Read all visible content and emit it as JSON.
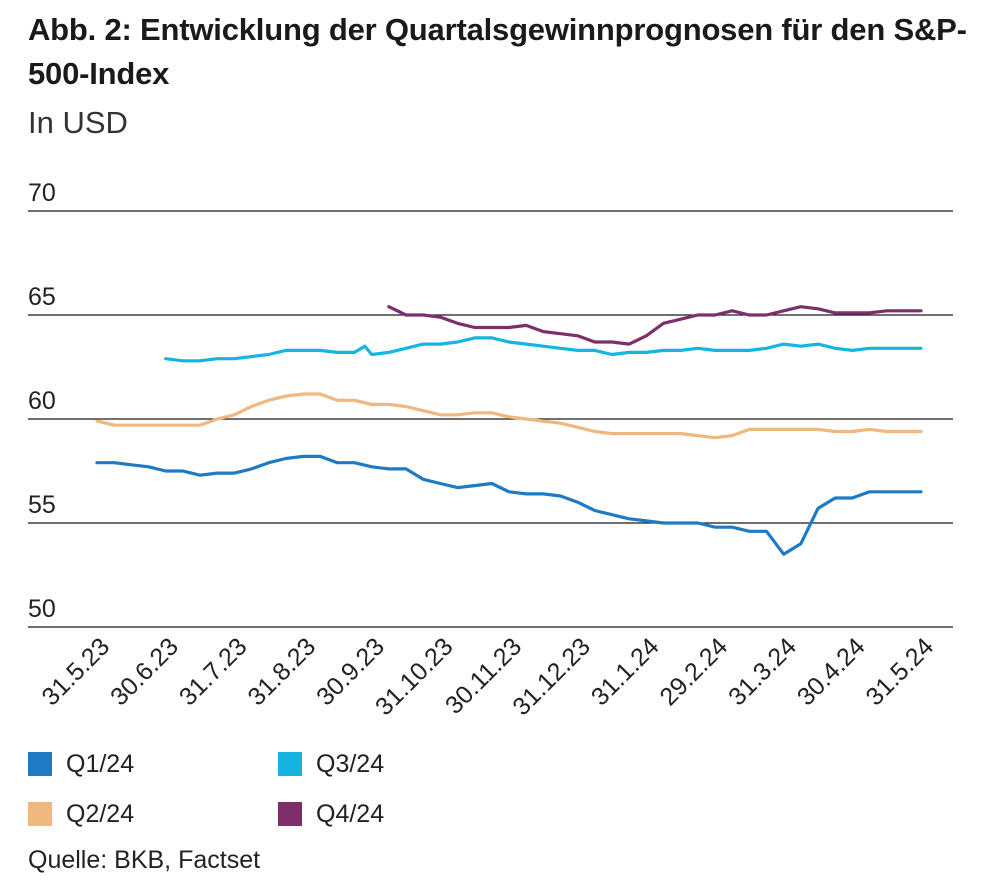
{
  "title": "Abb. 2: Entwicklung der Quartalsgewinnprognosen für den S&P-500-Index",
  "subtitle": "In USD",
  "source": "Quelle: BKB, Factset",
  "chart_data": {
    "type": "line",
    "title": "Abb. 2: Entwicklung der Quartalsgewinnprognosen für den S&P-500-Index",
    "ylabel": "In USD",
    "ylim": [
      50,
      70
    ],
    "yticks": [
      "50",
      "55",
      "60",
      "65",
      "70"
    ],
    "grid": true,
    "legend_position": "bottom",
    "xticks": [
      "31.5.23",
      "30.6.23",
      "31.7.23",
      "31.8.23",
      "30.9.23",
      "31.10.23",
      "30.11.23",
      "31.12.23",
      "31.1.24",
      "29.2.24",
      "31.3.24",
      "30.4.24",
      "31.5.24"
    ],
    "series": [
      {
        "name": "Q1/24",
        "color": "#1f7ac4",
        "x": [
          0,
          0.25,
          0.5,
          0.75,
          1,
          1.25,
          1.5,
          1.75,
          2,
          2.25,
          2.5,
          2.75,
          3,
          3.25,
          3.5,
          3.75,
          4,
          4.25,
          4.5,
          4.75,
          5,
          5.25,
          5.5,
          5.75,
          6,
          6.25,
          6.5,
          6.75,
          7,
          7.25,
          7.5,
          7.75,
          8,
          8.25,
          8.5,
          8.75,
          9,
          9.25,
          9.5,
          9.75,
          10,
          10.25,
          10.5,
          10.75,
          10.9,
          11,
          11.25,
          11.5,
          11.75,
          12
        ],
        "values": [
          57.9,
          57.9,
          57.8,
          57.7,
          57.5,
          57.5,
          57.3,
          57.4,
          57.4,
          57.6,
          57.9,
          58.1,
          58.2,
          58.2,
          57.9,
          57.9,
          57.7,
          57.6,
          57.6,
          57.1,
          56.9,
          56.7,
          56.8,
          56.9,
          56.5,
          56.4,
          56.4,
          56.3,
          56.0,
          55.6,
          55.4,
          55.2,
          55.1,
          55.0,
          55.0,
          55.0,
          54.8,
          54.8,
          54.6,
          54.6,
          53.5,
          54.0,
          55.7,
          56.2,
          56.2,
          56.2,
          56.5,
          56.5,
          56.5,
          56.5
        ]
      },
      {
        "name": "Q2/24",
        "color": "#f0b77e",
        "x": [
          0,
          0.25,
          0.5,
          0.75,
          1,
          1.25,
          1.5,
          1.75,
          2,
          2.25,
          2.5,
          2.75,
          3,
          3.25,
          3.5,
          3.75,
          4,
          4.25,
          4.5,
          4.75,
          5,
          5.25,
          5.5,
          5.75,
          6,
          6.25,
          6.5,
          6.75,
          7,
          7.25,
          7.5,
          7.75,
          8,
          8.25,
          8.5,
          8.75,
          9,
          9.25,
          9.5,
          9.75,
          10,
          10.25,
          10.5,
          10.75,
          11,
          11.25,
          11.5,
          11.75,
          12
        ],
        "values": [
          59.9,
          59.7,
          59.7,
          59.7,
          59.7,
          59.7,
          59.7,
          60.0,
          60.2,
          60.6,
          60.9,
          61.1,
          61.2,
          61.2,
          60.9,
          60.9,
          60.7,
          60.7,
          60.6,
          60.4,
          60.2,
          60.2,
          60.3,
          60.3,
          60.1,
          60.0,
          59.9,
          59.8,
          59.6,
          59.4,
          59.3,
          59.3,
          59.3,
          59.3,
          59.3,
          59.2,
          59.1,
          59.2,
          59.5,
          59.5,
          59.5,
          59.5,
          59.5,
          59.4,
          59.4,
          59.5,
          59.4,
          59.4,
          59.4
        ]
      },
      {
        "name": "Q3/24",
        "color": "#16b4e0",
        "x": [
          1,
          1.25,
          1.5,
          1.75,
          2,
          2.25,
          2.5,
          2.75,
          3,
          3.25,
          3.5,
          3.75,
          3.9,
          4,
          4.25,
          4.5,
          4.75,
          5,
          5.25,
          5.5,
          5.75,
          6,
          6.25,
          6.5,
          6.75,
          7,
          7.25,
          7.5,
          7.75,
          8,
          8.25,
          8.5,
          8.75,
          9,
          9.25,
          9.5,
          9.75,
          10,
          10.25,
          10.5,
          10.75,
          11,
          11.25,
          11.5,
          11.75,
          12
        ],
        "values": [
          62.9,
          62.8,
          62.8,
          62.9,
          62.9,
          63.0,
          63.1,
          63.3,
          63.3,
          63.3,
          63.2,
          63.2,
          63.5,
          63.1,
          63.2,
          63.4,
          63.6,
          63.6,
          63.7,
          63.9,
          63.9,
          63.7,
          63.6,
          63.5,
          63.4,
          63.3,
          63.3,
          63.1,
          63.2,
          63.2,
          63.3,
          63.3,
          63.4,
          63.3,
          63.3,
          63.3,
          63.4,
          63.6,
          63.5,
          63.6,
          63.4,
          63.3,
          63.4,
          63.4,
          63.4,
          63.4
        ]
      },
      {
        "name": "Q4/24",
        "color": "#7e2f6a",
        "x": [
          4.25,
          4.5,
          4.75,
          5,
          5.25,
          5.5,
          5.75,
          6,
          6.25,
          6.5,
          6.75,
          7,
          7.25,
          7.5,
          7.75,
          8,
          8.25,
          8.5,
          8.75,
          9,
          9.25,
          9.5,
          9.75,
          10,
          10.25,
          10.5,
          10.75,
          11,
          11.25,
          11.5,
          11.75,
          12
        ],
        "values": [
          65.4,
          65.0,
          65.0,
          64.9,
          64.6,
          64.4,
          64.4,
          64.4,
          64.5,
          64.2,
          64.1,
          64.0,
          63.7,
          63.7,
          63.6,
          64.0,
          64.6,
          64.8,
          65.0,
          65.0,
          65.2,
          65.0,
          65.0,
          65.2,
          65.4,
          65.3,
          65.1,
          65.1,
          65.1,
          65.2,
          65.2,
          65.2
        ]
      }
    ]
  }
}
